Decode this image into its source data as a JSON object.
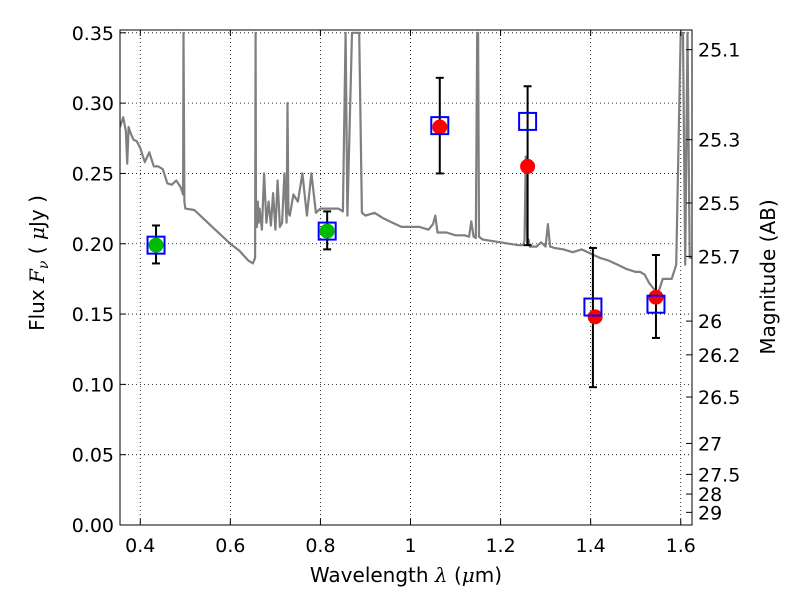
{
  "chart_data": {
    "type": "scatter",
    "xlabel": "Wavelength  λ (μm)",
    "xlabel_parts": {
      "text": "Wavelength  ",
      "symbol": "λ",
      "unit_open": " (",
      "unit_symbol": "μ",
      "unit_close": "m)"
    },
    "ylabel": "Flux  Fν  ( μJy )",
    "ylabel_parts": {
      "text": "Flux  ",
      "symbol": "F",
      "subscript": "ν",
      "open": "  ( ",
      "unit_symbol": "μ",
      "unit_close": "Jy )"
    },
    "y2label": "Magnitude (AB)",
    "xlim": [
      0.355,
      1.625
    ],
    "ylim": [
      0.0,
      0.352
    ],
    "grid": true,
    "grid_style": "dotted",
    "xticks": [
      {
        "value": 0.4,
        "label": "0.4"
      },
      {
        "value": 0.6,
        "label": "0.6"
      },
      {
        "value": 0.8,
        "label": "0.8"
      },
      {
        "value": 1.0,
        "label": "1"
      },
      {
        "value": 1.2,
        "label": "1.2"
      },
      {
        "value": 1.4,
        "label": "1.4"
      },
      {
        "value": 1.6,
        "label": "1.6"
      }
    ],
    "yticks": [
      {
        "value": 0.0,
        "label": "0.00"
      },
      {
        "value": 0.05,
        "label": "0.05"
      },
      {
        "value": 0.1,
        "label": "0.10"
      },
      {
        "value": 0.15,
        "label": "0.15"
      },
      {
        "value": 0.2,
        "label": "0.20"
      },
      {
        "value": 0.25,
        "label": "0.25"
      },
      {
        "value": 0.3,
        "label": "0.30"
      },
      {
        "value": 0.35,
        "label": "0.35"
      }
    ],
    "y2ticks": [
      {
        "flux": 0.338,
        "label": "25.1"
      },
      {
        "flux": 0.274,
        "label": "25.3"
      },
      {
        "flux": 0.229,
        "label": "25.5"
      },
      {
        "flux": 0.191,
        "label": "25.7"
      },
      {
        "flux": 0.145,
        "label": "26"
      },
      {
        "flux": 0.121,
        "label": "26.2"
      },
      {
        "flux": 0.091,
        "label": "26.5"
      },
      {
        "flux": 0.058,
        "label": "27"
      },
      {
        "flux": 0.036,
        "label": "27.5"
      },
      {
        "flux": 0.022,
        "label": "28"
      },
      {
        "flux": 0.009,
        "label": "29"
      }
    ],
    "series": [
      {
        "name": "template SED",
        "kind": "line",
        "color": "#7f7f7f",
        "x": [
          0.355,
          0.362,
          0.368,
          0.371,
          0.374,
          0.378,
          0.385,
          0.392,
          0.4,
          0.41,
          0.42,
          0.43,
          0.44,
          0.45,
          0.46,
          0.47,
          0.48,
          0.49,
          0.495,
          0.496,
          0.498,
          0.5,
          0.52,
          0.54,
          0.56,
          0.58,
          0.6,
          0.62,
          0.64,
          0.65,
          0.655,
          0.656,
          0.657,
          0.659,
          0.661,
          0.663,
          0.665,
          0.67,
          0.675,
          0.68,
          0.685,
          0.69,
          0.695,
          0.7,
          0.705,
          0.71,
          0.715,
          0.72,
          0.725,
          0.727,
          0.729,
          0.732,
          0.74,
          0.75,
          0.76,
          0.77,
          0.78,
          0.79,
          0.8,
          0.82,
          0.84,
          0.85,
          0.856,
          0.86,
          0.87,
          0.88,
          0.886,
          0.892,
          0.9,
          0.92,
          0.94,
          0.96,
          0.98,
          1.0,
          1.02,
          1.04,
          1.05,
          1.055,
          1.06,
          1.08,
          1.1,
          1.12,
          1.13,
          1.135,
          1.14,
          1.145,
          1.148,
          1.15,
          1.152,
          1.16,
          1.18,
          1.2,
          1.22,
          1.24,
          1.25,
          1.253,
          1.256,
          1.259,
          1.262,
          1.265,
          1.27,
          1.28,
          1.29,
          1.3,
          1.305,
          1.31,
          1.32,
          1.34,
          1.36,
          1.38,
          1.4,
          1.42,
          1.44,
          1.46,
          1.48,
          1.5,
          1.51,
          1.52,
          1.53,
          1.54,
          1.55,
          1.56,
          1.57,
          1.58,
          1.59,
          1.6,
          1.605,
          1.61,
          1.615,
          1.62,
          1.625
        ],
        "y": [
          0.283,
          0.29,
          0.28,
          0.257,
          0.283,
          0.279,
          0.274,
          0.273,
          0.268,
          0.258,
          0.265,
          0.255,
          0.255,
          0.253,
          0.243,
          0.242,
          0.245,
          0.24,
          0.235,
          0.35,
          0.23,
          0.225,
          0.224,
          0.218,
          0.212,
          0.206,
          0.2,
          0.195,
          0.188,
          0.186,
          0.19,
          0.35,
          0.215,
          0.212,
          0.23,
          0.215,
          0.225,
          0.21,
          0.25,
          0.215,
          0.23,
          0.213,
          0.236,
          0.21,
          0.245,
          0.212,
          0.215,
          0.25,
          0.215,
          0.3,
          0.222,
          0.22,
          0.235,
          0.23,
          0.25,
          0.22,
          0.25,
          0.222,
          0.225,
          0.225,
          0.225,
          0.223,
          0.35,
          0.22,
          0.35,
          0.35,
          0.35,
          0.222,
          0.22,
          0.222,
          0.218,
          0.215,
          0.212,
          0.212,
          0.212,
          0.21,
          0.214,
          0.22,
          0.208,
          0.208,
          0.206,
          0.206,
          0.205,
          0.216,
          0.205,
          0.204,
          0.35,
          0.35,
          0.205,
          0.203,
          0.202,
          0.201,
          0.2,
          0.199,
          0.199,
          0.202,
          0.262,
          0.2,
          0.203,
          0.198,
          0.198,
          0.198,
          0.201,
          0.198,
          0.214,
          0.198,
          0.197,
          0.196,
          0.194,
          0.196,
          0.193,
          0.19,
          0.188,
          0.185,
          0.182,
          0.18,
          0.18,
          0.178,
          0.172,
          0.168,
          0.165,
          0.175,
          0.175,
          0.175,
          0.185,
          0.35,
          0.35,
          0.185,
          0.35,
          0.19,
          0.19
        ]
      },
      {
        "name": "model photometry (green)",
        "kind": "marker",
        "marker": "circle",
        "color": "#00bb00",
        "x": [
          0.435,
          0.815
        ],
        "y": [
          0.199,
          0.209
        ]
      },
      {
        "name": "model photometry (red)",
        "kind": "marker",
        "marker": "circle",
        "color": "#ff0000",
        "x": [
          1.065,
          1.26,
          1.41,
          1.545
        ],
        "y": [
          0.283,
          0.255,
          0.148,
          0.162
        ]
      },
      {
        "name": "observed photometry",
        "kind": "errorbar",
        "marker": "square-open",
        "color": "#0000ff",
        "errcolor": "#000000",
        "x": [
          0.435,
          0.815,
          1.065,
          1.26,
          1.405,
          1.545
        ],
        "y": [
          0.199,
          0.209,
          0.284,
          0.287,
          0.155,
          0.157
        ],
        "yerr_low": [
          0.186,
          0.196,
          0.25,
          0.199,
          0.098,
          0.133
        ],
        "yerr_high": [
          0.213,
          0.223,
          0.318,
          0.312,
          0.197,
          0.192
        ]
      }
    ]
  }
}
